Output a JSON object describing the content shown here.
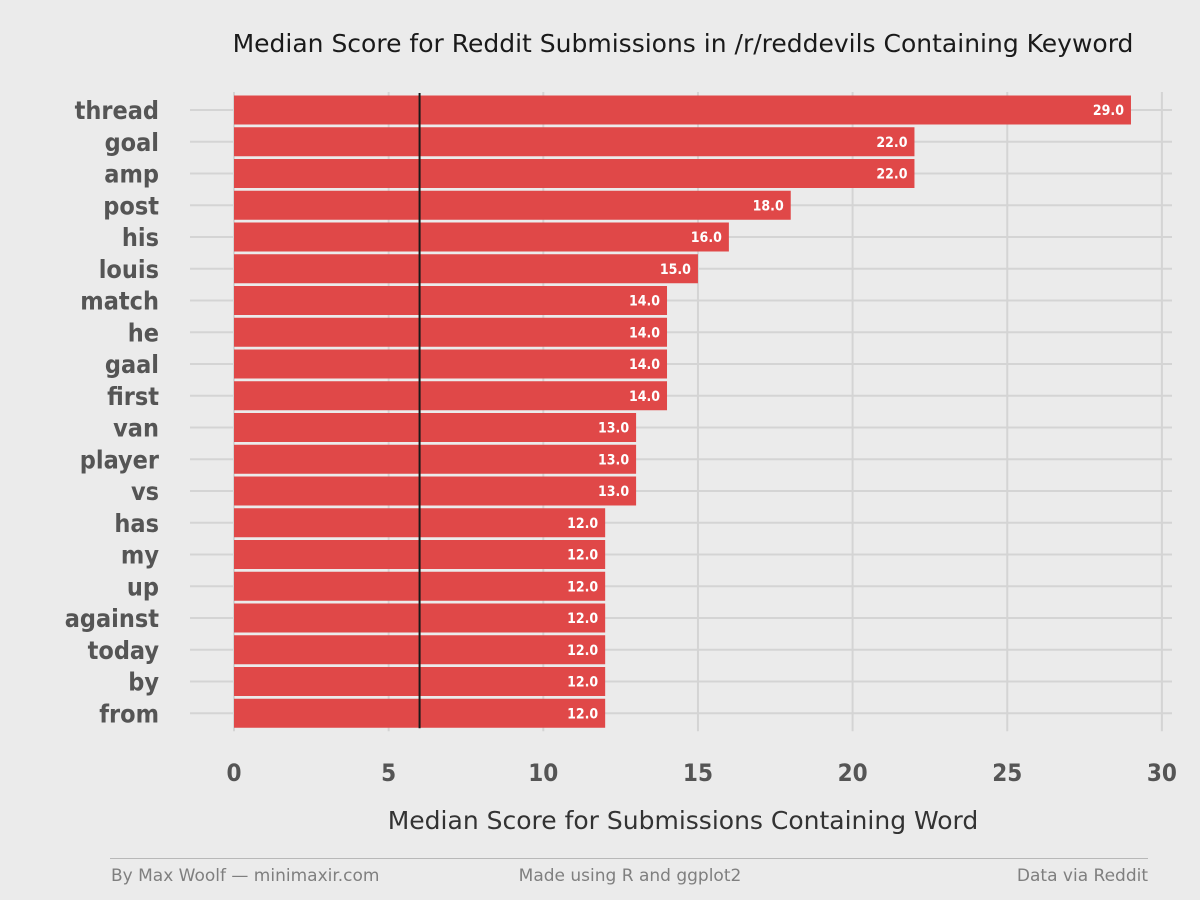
{
  "chart_data": {
    "type": "bar",
    "orientation": "horizontal",
    "title": "Median Score for Reddit Submissions in /r/reddevils Containing Keyword",
    "xlabel": "Median Score for Submissions Containing Word",
    "ylabel": "",
    "categories": [
      "thread",
      "goal",
      "amp",
      "post",
      "his",
      "louis",
      "match",
      "he",
      "gaal",
      "first",
      "van",
      "player",
      "vs",
      "has",
      "my",
      "up",
      "against",
      "today",
      "by",
      "from"
    ],
    "values": [
      29.0,
      22.0,
      22.0,
      18.0,
      16.0,
      15.0,
      14.0,
      14.0,
      14.0,
      14.0,
      13.0,
      13.0,
      13.0,
      12.0,
      12.0,
      12.0,
      12.0,
      12.0,
      12.0,
      12.0
    ],
    "value_labels": [
      "29.0",
      "22.0",
      "22.0",
      "18.0",
      "16.0",
      "15.0",
      "14.0",
      "14.0",
      "14.0",
      "14.0",
      "13.0",
      "13.0",
      "13.0",
      "12.0",
      "12.0",
      "12.0",
      "12.0",
      "12.0",
      "12.0",
      "12.0"
    ],
    "xlim": [
      0,
      30
    ],
    "xticks": [
      0,
      5,
      10,
      15,
      20,
      25,
      30
    ],
    "reference_line": 6,
    "grid": true,
    "legend": "none",
    "colors": {
      "bar": "#e04848",
      "background": "#ebebeb",
      "grid": "#d4d4d4",
      "reference_line": "#1a1a1a",
      "bar_label": "#ffffff",
      "tick_label": "#555555",
      "title": "#1a1a1a"
    }
  },
  "footer": {
    "left": "By Max Woolf — minimaxir.com",
    "center": "Made using R and ggplot2",
    "right": "Data via Reddit"
  }
}
